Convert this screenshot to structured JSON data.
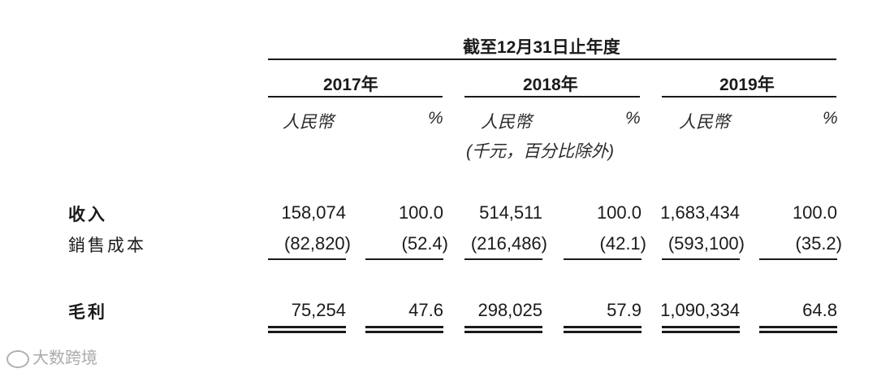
{
  "header": {
    "period": "截至12月31日止年度",
    "years": [
      "2017年",
      "2018年",
      "2019年"
    ],
    "currency": "人民幣",
    "percent": "%",
    "unit_note": "(千元，百分比除外)"
  },
  "rows": [
    {
      "label": "收入",
      "values": [
        "158,074",
        "100.0",
        "514,511",
        "100.0",
        "1,683,434",
        "100.0"
      ]
    },
    {
      "label": "銷售成本",
      "values": [
        "(82,820)",
        "(52.4)",
        "(216,486)",
        "(42.1)",
        "(593,100)",
        "(35.2)"
      ]
    },
    {
      "label": "毛利",
      "values": [
        "75,254",
        "47.6",
        "298,025",
        "57.9",
        "1,090,334",
        "64.8"
      ]
    }
  ],
  "watermark": "大数跨境"
}
